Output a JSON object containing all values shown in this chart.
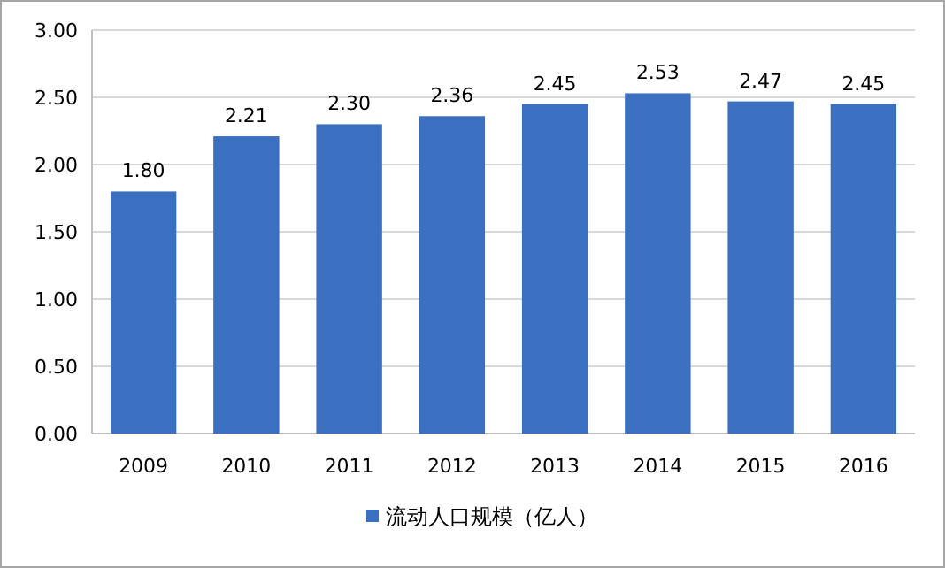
{
  "chart_data": {
    "type": "bar",
    "categories": [
      "2009",
      "2010",
      "2011",
      "2012",
      "2013",
      "2014",
      "2015",
      "2016"
    ],
    "series": [
      {
        "name": "流动人口规模（亿人）",
        "color": "#3b6fc0",
        "values": [
          1.8,
          2.21,
          2.3,
          2.36,
          2.45,
          2.53,
          2.47,
          2.45
        ],
        "value_labels": [
          "1.80",
          "2.21",
          "2.30",
          "2.36",
          "2.45",
          "2.53",
          "2.47",
          "2.45"
        ]
      }
    ],
    "ylim": [
      0,
      3
    ],
    "yticks": [
      {
        "value": 0,
        "label": "0.00"
      },
      {
        "value": 0.5,
        "label": "0.50"
      },
      {
        "value": 1,
        "label": "1.00"
      },
      {
        "value": 1.5,
        "label": "1.50"
      },
      {
        "value": 2,
        "label": "2.00"
      },
      {
        "value": 2.5,
        "label": "2.50"
      },
      {
        "value": 3,
        "label": "3.00"
      }
    ],
    "grid": "y",
    "legend": "bottom"
  }
}
